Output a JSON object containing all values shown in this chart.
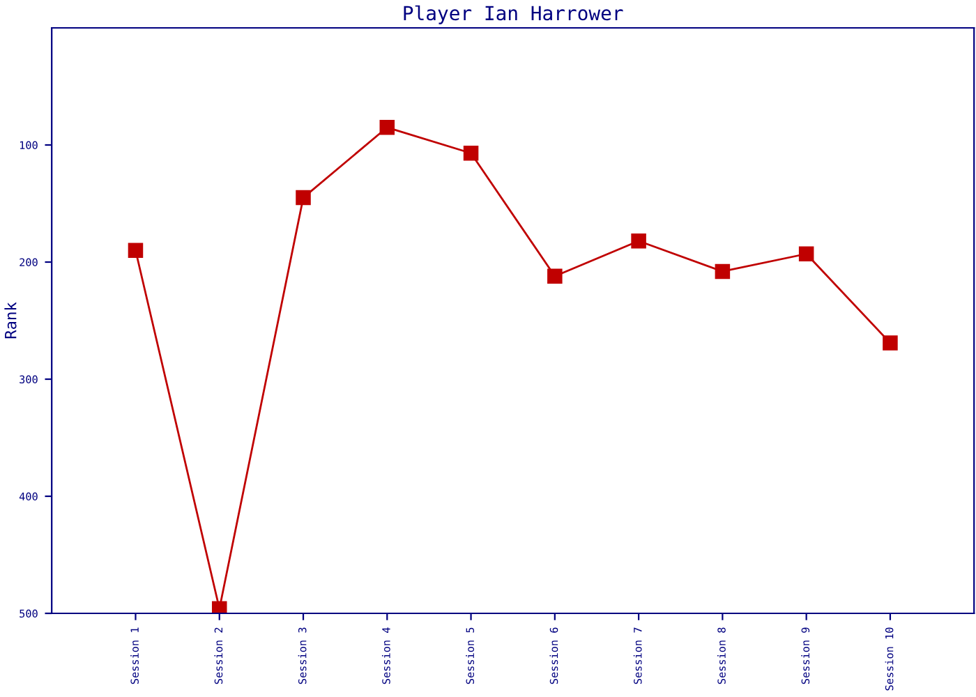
{
  "chart_data": {
    "type": "line",
    "title": "Player Ian Harrower",
    "ylabel": "Rank",
    "categories": [
      "Session 1",
      "Session 2",
      "Session 3",
      "Session 4",
      "Session 5",
      "Session 6",
      "Session 7",
      "Session 8",
      "Session 9",
      "Session 10"
    ],
    "series": [
      {
        "color": "#c00000",
        "values": [
          190,
          496,
          145,
          85,
          107,
          212,
          182,
          208,
          193,
          269
        ]
      }
    ],
    "ylim": [
      500,
      0
    ],
    "yticks": [
      100,
      200,
      300,
      400,
      500
    ],
    "marker": "square",
    "line_style": "solid",
    "grid": false,
    "legend": false
  }
}
